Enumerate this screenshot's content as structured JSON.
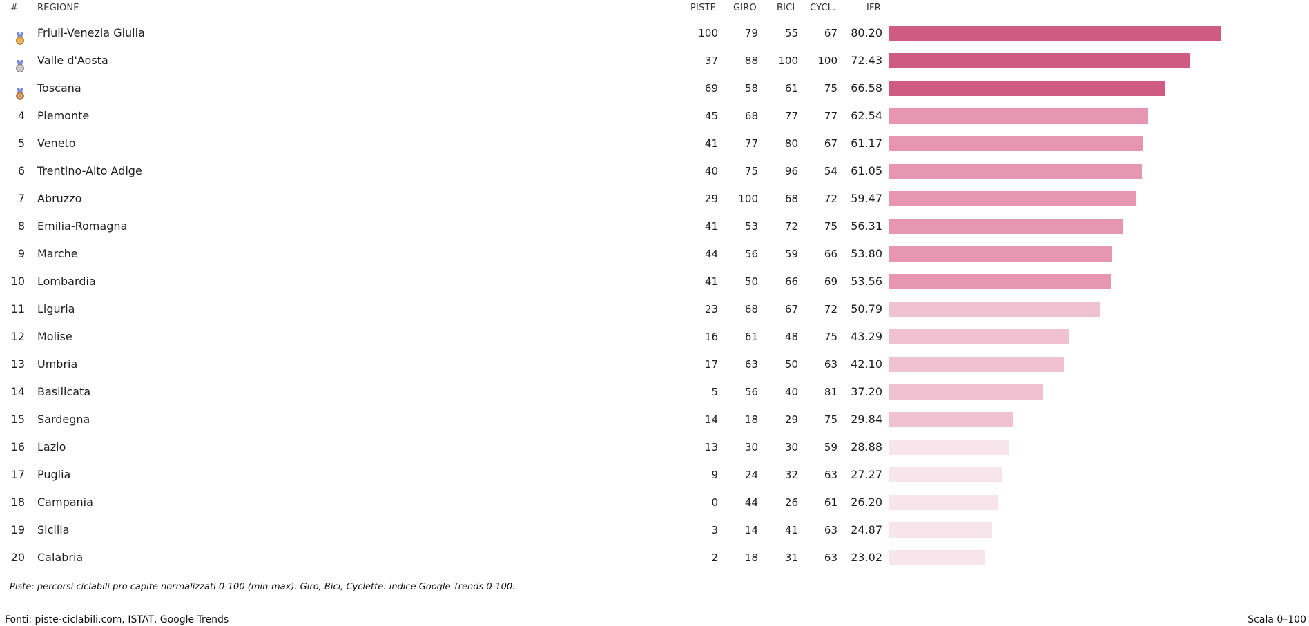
{
  "headers": {
    "rank": "#",
    "region": "REGIONE",
    "piste": "PISTE",
    "giro": "GIRO",
    "bici": "BICI",
    "cycl": "CYCL.",
    "ifr": "IFR"
  },
  "colors": {
    "tier1": "#cf5a82",
    "tier2": "#e796b2",
    "tier3": "#efc1d1",
    "tier4": "#f8e4eb",
    "gold": "#f0a531",
    "silver": "#b9c0cc",
    "bronze": "#c9834a",
    "ribbon": "#7a8ad8"
  },
  "chart_data": {
    "type": "bar",
    "orientation": "horizontal",
    "xlim": [
      0,
      100
    ],
    "columns": [
      "PISTE",
      "GIRO",
      "BICI",
      "CYCL.",
      "IFR"
    ],
    "rows": [
      {
        "rank": "1",
        "medal": "gold",
        "region": "Friuli-Venezia Giulia",
        "piste": "100",
        "giro": "79",
        "bici": "55",
        "cycl": "67",
        "ifr": "80.20",
        "value": 80.2,
        "tier": 1
      },
      {
        "rank": "2",
        "medal": "silver",
        "region": "Valle d'Aosta",
        "piste": "37",
        "giro": "88",
        "bici": "100",
        "cycl": "100",
        "ifr": "72.43",
        "value": 72.43,
        "tier": 1
      },
      {
        "rank": "3",
        "medal": "bronze",
        "region": "Toscana",
        "piste": "69",
        "giro": "58",
        "bici": "61",
        "cycl": "75",
        "ifr": "66.58",
        "value": 66.58,
        "tier": 1
      },
      {
        "rank": "4",
        "region": "Piemonte",
        "piste": "45",
        "giro": "68",
        "bici": "77",
        "cycl": "77",
        "ifr": "62.54",
        "value": 62.54,
        "tier": 2
      },
      {
        "rank": "5",
        "region": "Veneto",
        "piste": "41",
        "giro": "77",
        "bici": "80",
        "cycl": "67",
        "ifr": "61.17",
        "value": 61.17,
        "tier": 2
      },
      {
        "rank": "6",
        "region": "Trentino-Alto Adige",
        "piste": "40",
        "giro": "75",
        "bici": "96",
        "cycl": "54",
        "ifr": "61.05",
        "value": 61.05,
        "tier": 2
      },
      {
        "rank": "7",
        "region": "Abruzzo",
        "piste": "29",
        "giro": "100",
        "bici": "68",
        "cycl": "72",
        "ifr": "59.47",
        "value": 59.47,
        "tier": 2
      },
      {
        "rank": "8",
        "region": "Emilia-Romagna",
        "piste": "41",
        "giro": "53",
        "bici": "72",
        "cycl": "75",
        "ifr": "56.31",
        "value": 56.31,
        "tier": 2
      },
      {
        "rank": "9",
        "region": "Marche",
        "piste": "44",
        "giro": "56",
        "bici": "59",
        "cycl": "66",
        "ifr": "53.80",
        "value": 53.8,
        "tier": 2
      },
      {
        "rank": "10",
        "region": "Lombardia",
        "piste": "41",
        "giro": "50",
        "bici": "66",
        "cycl": "69",
        "ifr": "53.56",
        "value": 53.56,
        "tier": 2
      },
      {
        "rank": "11",
        "region": "Liguria",
        "piste": "23",
        "giro": "68",
        "bici": "67",
        "cycl": "72",
        "ifr": "50.79",
        "value": 50.79,
        "tier": 3
      },
      {
        "rank": "12",
        "region": "Molise",
        "piste": "16",
        "giro": "61",
        "bici": "48",
        "cycl": "75",
        "ifr": "43.29",
        "value": 43.29,
        "tier": 3
      },
      {
        "rank": "13",
        "region": "Umbria",
        "piste": "17",
        "giro": "63",
        "bici": "50",
        "cycl": "63",
        "ifr": "42.10",
        "value": 42.1,
        "tier": 3
      },
      {
        "rank": "14",
        "region": "Basilicata",
        "piste": "5",
        "giro": "56",
        "bici": "40",
        "cycl": "81",
        "ifr": "37.20",
        "value": 37.2,
        "tier": 3
      },
      {
        "rank": "15",
        "region": "Sardegna",
        "piste": "14",
        "giro": "18",
        "bici": "29",
        "cycl": "75",
        "ifr": "29.84",
        "value": 29.84,
        "tier": 3
      },
      {
        "rank": "16",
        "region": "Lazio",
        "piste": "13",
        "giro": "30",
        "bici": "30",
        "cycl": "59",
        "ifr": "28.88",
        "value": 28.88,
        "tier": 4
      },
      {
        "rank": "17",
        "region": "Puglia",
        "piste": "9",
        "giro": "24",
        "bici": "32",
        "cycl": "63",
        "ifr": "27.27",
        "value": 27.27,
        "tier": 4
      },
      {
        "rank": "18",
        "region": "Campania",
        "piste": "0",
        "giro": "44",
        "bici": "26",
        "cycl": "61",
        "ifr": "26.20",
        "value": 26.2,
        "tier": 4
      },
      {
        "rank": "19",
        "region": "Sicilia",
        "piste": "3",
        "giro": "14",
        "bici": "41",
        "cycl": "63",
        "ifr": "24.87",
        "value": 24.87,
        "tier": 4
      },
      {
        "rank": "20",
        "region": "Calabria",
        "piste": "2",
        "giro": "18",
        "bici": "31",
        "cycl": "63",
        "ifr": "23.02",
        "value": 23.02,
        "tier": 4
      }
    ]
  },
  "footnote": "Piste: percorsi ciclabili pro capite normalizzati 0-100 (min-max). Giro, Bici, Cyclette: indice Google Trends 0-100.",
  "sources": "Fonti: piste-ciclabili.com, ISTAT, Google Trends",
  "scale": "Scala 0–100"
}
